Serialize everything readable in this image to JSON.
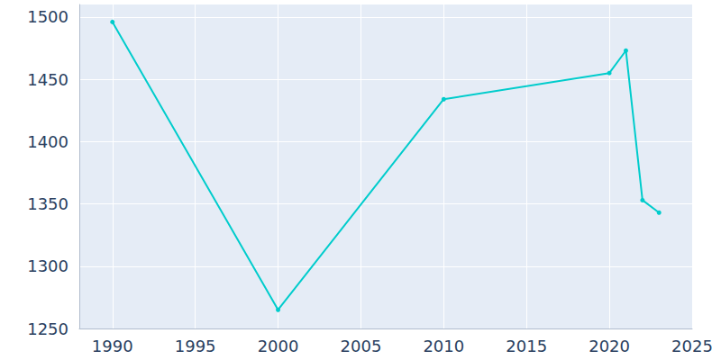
{
  "chart_data": {
    "type": "line",
    "x": [
      1990,
      2000,
      2010,
      2020,
      2021,
      2022,
      2023
    ],
    "values": [
      1496,
      1265,
      1434,
      1455,
      1473,
      1353,
      1343
    ],
    "color": "#00cccc",
    "marker": "circle",
    "xlim": [
      1988,
      2025
    ],
    "xticks": [
      1990,
      1995,
      2000,
      2005,
      2010,
      2015,
      2020,
      2025
    ],
    "ylim": [
      1250,
      1510
    ],
    "yticks": [
      1250,
      1300,
      1350,
      1400,
      1450,
      1500
    ],
    "grid": true
  }
}
